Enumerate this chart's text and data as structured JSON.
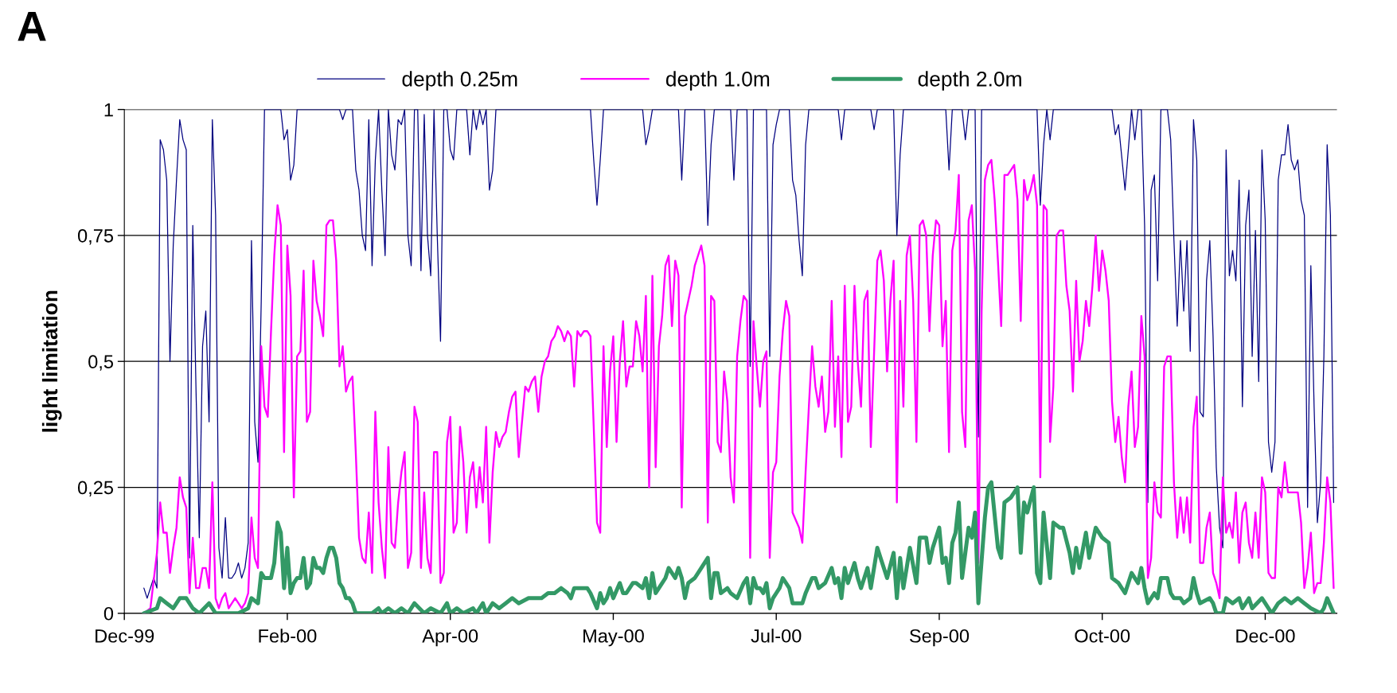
{
  "chart_data": {
    "type": "line",
    "ylabel": "light limitation",
    "annotations": [
      "A"
    ],
    "legend": "top",
    "grid": "y",
    "line_style": "solid",
    "xlim": [
      "1999-12-31",
      "2001-01-06"
    ],
    "xticks": [
      {
        "value": "1999-12-31",
        "label": "Dec-99"
      },
      {
        "value": "2000-02-19",
        "label": "Feb-00"
      },
      {
        "value": "2000-04-09",
        "label": "Apr-00"
      },
      {
        "value": "2000-05-29",
        "label": "May-00"
      },
      {
        "value": "2000-07-18",
        "label": "Jul-00"
      },
      {
        "value": "2000-09-06",
        "label": "Sep-00"
      },
      {
        "value": "2000-10-26",
        "label": "Oct-00"
      },
      {
        "value": "2000-12-15",
        "label": "Dec-00"
      }
    ],
    "ylim": [
      0,
      1
    ],
    "yticks": [
      0,
      {
        "value": 0.25,
        "label": "0,25"
      },
      {
        "value": 0.5,
        "label": "0,5"
      },
      {
        "value": 0.75,
        "label": "0,75"
      },
      1
    ],
    "series": [
      {
        "name": "depth 0.25m",
        "color": "#000080",
        "x": [
          "2000-01-06",
          "2000-01-07",
          "2000-01-09",
          "2000-01-10",
          "2000-01-11",
          "2000-01-12",
          "2000-01-13",
          "2000-01-14",
          "2000-01-15",
          "2000-01-16",
          "2000-01-17",
          "2000-01-18",
          "2000-01-19",
          "2000-01-20",
          "2000-01-21",
          "2000-01-22",
          "2000-01-23",
          "2000-01-24",
          "2000-01-25",
          "2000-01-26",
          "2000-01-27",
          "2000-01-28",
          "2000-01-29",
          "2000-01-30",
          "2000-01-31",
          "2000-02-01",
          "2000-02-02",
          "2000-02-03",
          "2000-02-04",
          "2000-02-05",
          "2000-02-06",
          "2000-02-07",
          "2000-02-08",
          "2000-02-09",
          "2000-02-10",
          "2000-02-11",
          "2000-02-12",
          "2000-02-17",
          "2000-02-18",
          "2000-02-19",
          "2000-02-20",
          "2000-02-21",
          "2000-02-22",
          "2000-03-06",
          "2000-03-07",
          "2000-03-08",
          "2000-03-10",
          "2000-03-11",
          "2000-03-12",
          "2000-03-13",
          "2000-03-14",
          "2000-03-15",
          "2000-03-16",
          "2000-03-17",
          "2000-03-18",
          "2000-03-19",
          "2000-03-20",
          "2000-03-21",
          "2000-03-22",
          "2000-03-23",
          "2000-03-24",
          "2000-03-25",
          "2000-03-26",
          "2000-03-27",
          "2000-03-28",
          "2000-03-29",
          "2000-03-30",
          "2000-03-31",
          "2000-04-01",
          "2000-04-02",
          "2000-04-03",
          "2000-04-04",
          "2000-04-05",
          "2000-04-06",
          "2000-04-07",
          "2000-04-08",
          "2000-04-09",
          "2000-04-10",
          "2000-04-11",
          "2000-04-14",
          "2000-04-15",
          "2000-04-16",
          "2000-04-17",
          "2000-04-18",
          "2000-04-19",
          "2000-04-20",
          "2000-04-21",
          "2000-04-22",
          "2000-04-23",
          "2000-05-22",
          "2000-05-23",
          "2000-05-24",
          "2000-05-25",
          "2000-05-26",
          "2000-06-07",
          "2000-06-08",
          "2000-06-09",
          "2000-06-10",
          "2000-06-18",
          "2000-06-19",
          "2000-06-20",
          "2000-06-26",
          "2000-06-27",
          "2000-06-28",
          "2000-06-29",
          "2000-07-04",
          "2000-07-05",
          "2000-07-06",
          "2000-07-09",
          "2000-07-10",
          "2000-07-11",
          "2000-07-15",
          "2000-07-16",
          "2000-07-17",
          "2000-07-18",
          "2000-07-19",
          "2000-07-22",
          "2000-07-23",
          "2000-07-24",
          "2000-07-25",
          "2000-07-26",
          "2000-07-27",
          "2000-07-28",
          "2000-08-06",
          "2000-08-07",
          "2000-08-08",
          "2000-08-16",
          "2000-08-17",
          "2000-08-18",
          "2000-08-23",
          "2000-08-24",
          "2000-08-25",
          "2000-08-26",
          "2000-09-08",
          "2000-09-09",
          "2000-09-10",
          "2000-09-13",
          "2000-09-14",
          "2000-09-15",
          "2000-09-17",
          "2000-09-18",
          "2000-09-19",
          "2000-10-06",
          "2000-10-07",
          "2000-10-08",
          "2000-10-09",
          "2000-10-10",
          "2000-10-11",
          "2000-10-29",
          "2000-10-30",
          "2000-10-31",
          "2000-11-02",
          "2000-11-04",
          "2000-11-05",
          "2000-11-06",
          "2000-11-07",
          "2000-11-08",
          "2000-11-09",
          "2000-11-10",
          "2000-11-11",
          "2000-11-12",
          "2000-11-13",
          "2000-11-15",
          "2000-11-16",
          "2000-11-17",
          "2000-11-18",
          "2000-11-19",
          "2000-11-20",
          "2000-11-21",
          "2000-11-22",
          "2000-11-23",
          "2000-11-24",
          "2000-11-25",
          "2000-11-26",
          "2000-11-27",
          "2000-11-28",
          "2000-11-29",
          "2000-11-30",
          "2000-12-01",
          "2000-12-02",
          "2000-12-03",
          "2000-12-04",
          "2000-12-05",
          "2000-12-06",
          "2000-12-07",
          "2000-12-08",
          "2000-12-09",
          "2000-12-10",
          "2000-12-11",
          "2000-12-12",
          "2000-12-13",
          "2000-12-14",
          "2000-12-15",
          "2000-12-16",
          "2000-12-17",
          "2000-12-18",
          "2000-12-19",
          "2000-12-20",
          "2000-12-21",
          "2000-12-22",
          "2000-12-23",
          "2000-12-24",
          "2000-12-25",
          "2000-12-26",
          "2000-12-27",
          "2000-12-28",
          "2000-12-29",
          "2000-12-30",
          "2000-12-31",
          "2001-01-01",
          "2001-01-02",
          "2001-01-03",
          "2001-01-04",
          "2001-01-05"
        ],
        "values": [
          0.05,
          0.03,
          0.07,
          0.05,
          0.94,
          0.92,
          0.86,
          0.5,
          0.73,
          0.86,
          0.98,
          0.94,
          0.92,
          0.11,
          0.77,
          0.44,
          0.15,
          0.53,
          0.6,
          0.38,
          0.98,
          0.79,
          0.13,
          0.07,
          0.19,
          0.07,
          0.07,
          0.08,
          0.1,
          0.07,
          0.09,
          0.14,
          0.74,
          0.38,
          0.3,
          0.62,
          1,
          1,
          0.94,
          0.96,
          0.86,
          0.89,
          1,
          1,
          0.98,
          1,
          1,
          0.88,
          0.84,
          0.75,
          0.72,
          0.98,
          0.69,
          0.9,
          1,
          0.84,
          0.71,
          1,
          0.91,
          0.88,
          0.98,
          0.97,
          1,
          0.75,
          0.69,
          1,
          1,
          0.68,
          0.99,
          0.75,
          0.67,
          1,
          0.75,
          0.54,
          1,
          1,
          0.92,
          0.9,
          1,
          1,
          0.91,
          1,
          0.96,
          1,
          0.97,
          1,
          0.84,
          0.88,
          1,
          1,
          0.9,
          0.81,
          0.9,
          1,
          1,
          0.93,
          0.96,
          1,
          1,
          0.86,
          1,
          1,
          0.77,
          0.93,
          1,
          1,
          0.86,
          1,
          1,
          0.49,
          1,
          1,
          0.51,
          0.93,
          0.97,
          1,
          1,
          0.86,
          0.83,
          0.74,
          0.67,
          0.93,
          1,
          1,
          0.94,
          1,
          1,
          0.96,
          1,
          1,
          0.75,
          0.91,
          1,
          1,
          0.88,
          1,
          1,
          0.94,
          1,
          1,
          0.35,
          1,
          1,
          0.81,
          0.93,
          1,
          0.94,
          1,
          1,
          0.95,
          0.97,
          0.84,
          1,
          0.94,
          1,
          1,
          0.77,
          0.22,
          0.84,
          0.87,
          0.66,
          1,
          1,
          0.94,
          0.74,
          0.57,
          0.74,
          0.6,
          0.74,
          0.52,
          0.98,
          0.9,
          0.4,
          0.39,
          0.66,
          0.74,
          0.55,
          0.29,
          0.17,
          0.13,
          0.92,
          0.67,
          0.72,
          0.66,
          0.86,
          0.41,
          0.77,
          0.84,
          0.51,
          0.76,
          0.46,
          0.92,
          0.78,
          0.34,
          0.28,
          0.34,
          0.86,
          0.91,
          0.91,
          0.97,
          0.9,
          0.88,
          0.9,
          0.82,
          0.79,
          0.21,
          0.69,
          0.41,
          0.18,
          0.26,
          0.51,
          0.93,
          0.79,
          0.22
        ]
      },
      {
        "name": "depth 1.0m",
        "color": "#ff00ff",
        "x": [
          "2000-01-06",
          "2000-01-08",
          "2000-01-10",
          "2000-01-11",
          "2000-01-12",
          "2000-01-13",
          "2000-01-14",
          "2000-01-15",
          "2000-01-16",
          "2000-01-17",
          "2000-01-18",
          "2000-01-19",
          "2000-01-20",
          "2000-01-21",
          "2000-01-22",
          "2000-01-23",
          "2000-01-24",
          "2000-01-25",
          "2000-01-26",
          "2000-01-27",
          "2000-01-28",
          "2000-01-29",
          "2000-01-30",
          "2000-01-31",
          "2000-02-01",
          "2000-02-02",
          "2000-02-03",
          "2000-02-04",
          "2000-02-05",
          "2000-02-06",
          "2000-02-07",
          "2000-02-08",
          "2000-02-09",
          "2000-02-10",
          "2000-02-11",
          "2000-02-12",
          "2000-02-13",
          "2000-02-14",
          "2000-02-15",
          "2000-02-16",
          "2000-02-17",
          "2000-02-18",
          "2000-02-19",
          "2000-02-20",
          "2000-02-21",
          "2000-02-22",
          "2000-02-23",
          "2000-02-24",
          "2000-02-25",
          "2000-02-26",
          "2000-02-27",
          "2000-02-28",
          "2000-02-29",
          "2000-03-01",
          "2000-03-02",
          "2000-03-03",
          "2000-03-04",
          "2000-03-05",
          "2000-03-06",
          "2000-03-07",
          "2000-03-08",
          "2000-03-09",
          "2000-03-10",
          "2000-03-11",
          "2000-03-12",
          "2000-03-13",
          "2000-03-14",
          "2000-03-15",
          "2000-03-16",
          "2000-03-17",
          "2000-03-18",
          "2000-03-19",
          "2000-03-20",
          "2000-03-21",
          "2000-03-22",
          "2000-03-23",
          "2000-03-24",
          "2000-03-25",
          "2000-03-26",
          "2000-03-27",
          "2000-03-28",
          "2000-03-29",
          "2000-03-30",
          "2000-03-31",
          "2000-04-01",
          "2000-04-02",
          "2000-04-03",
          "2000-04-04",
          "2000-04-05",
          "2000-04-06",
          "2000-04-07",
          "2000-04-08",
          "2000-04-09",
          "2000-04-10",
          "2000-04-11",
          "2000-04-12",
          "2000-04-13",
          "2000-04-14",
          "2000-04-15",
          "2000-04-16",
          "2000-04-17",
          "2000-04-18",
          "2000-04-19",
          "2000-04-20",
          "2000-04-21",
          "2000-04-22",
          "2000-04-23",
          "2000-04-24",
          "2000-04-25",
          "2000-04-26",
          "2000-04-27",
          "2000-04-28",
          "2000-04-29",
          "2000-04-30",
          "2000-05-01",
          "2000-05-02",
          "2000-05-03",
          "2000-05-04",
          "2000-05-05",
          "2000-05-06",
          "2000-05-07",
          "2000-05-08",
          "2000-05-09",
          "2000-05-10",
          "2000-05-11",
          "2000-05-12",
          "2000-05-13",
          "2000-05-14",
          "2000-05-15",
          "2000-05-16",
          "2000-05-17",
          "2000-05-18",
          "2000-05-19",
          "2000-05-20",
          "2000-05-21",
          "2000-05-22",
          "2000-05-23",
          "2000-05-24",
          "2000-05-25",
          "2000-05-26",
          "2000-05-27",
          "2000-05-28",
          "2000-05-29",
          "2000-05-30",
          "2000-05-31",
          "2000-06-01",
          "2000-06-02",
          "2000-06-03",
          "2000-06-04",
          "2000-06-05",
          "2000-06-06",
          "2000-06-07",
          "2000-06-08",
          "2000-06-09",
          "2000-06-10",
          "2000-06-11",
          "2000-06-12",
          "2000-06-13",
          "2000-06-14",
          "2000-06-15",
          "2000-06-16",
          "2000-06-17",
          "2000-06-18",
          "2000-06-19",
          "2000-06-20",
          "2000-06-21",
          "2000-06-22",
          "2000-06-23",
          "2000-06-24",
          "2000-06-25",
          "2000-06-26",
          "2000-06-27",
          "2000-06-28",
          "2000-06-29",
          "2000-06-30",
          "2000-07-01",
          "2000-07-02",
          "2000-07-03",
          "2000-07-04",
          "2000-07-05",
          "2000-07-06",
          "2000-07-07",
          "2000-07-08",
          "2000-07-09",
          "2000-07-10",
          "2000-07-11",
          "2000-07-12",
          "2000-07-13",
          "2000-07-14",
          "2000-07-15",
          "2000-07-16",
          "2000-07-17",
          "2000-07-18",
          "2000-07-19",
          "2000-07-20",
          "2000-07-21",
          "2000-07-22",
          "2000-07-23",
          "2000-07-25",
          "2000-07-26",
          "2000-07-27",
          "2000-07-28",
          "2000-07-29",
          "2000-07-30",
          "2000-07-31",
          "2000-08-01",
          "2000-08-02",
          "2000-08-03",
          "2000-08-04",
          "2000-08-05",
          "2000-08-06",
          "2000-08-07",
          "2000-08-08",
          "2000-08-09",
          "2000-08-10",
          "2000-08-11",
          "2000-08-12",
          "2000-08-13",
          "2000-08-14",
          "2000-08-15",
          "2000-08-16",
          "2000-08-18",
          "2000-08-19",
          "2000-08-20",
          "2000-08-21",
          "2000-08-22",
          "2000-08-23",
          "2000-08-24",
          "2000-08-25",
          "2000-08-26",
          "2000-08-27",
          "2000-08-28",
          "2000-08-29",
          "2000-08-30",
          "2000-08-31",
          "2000-09-01",
          "2000-09-02",
          "2000-09-03",
          "2000-09-04",
          "2000-09-05",
          "2000-09-06",
          "2000-09-07",
          "2000-09-08",
          "2000-09-09",
          "2000-09-10",
          "2000-09-11",
          "2000-09-12",
          "2000-09-13",
          "2000-09-14",
          "2000-09-15",
          "2000-09-16",
          "2000-09-17",
          "2000-09-18",
          "2000-09-19",
          "2000-09-20",
          "2000-09-21",
          "2000-09-22",
          "2000-09-23",
          "2000-09-24",
          "2000-09-25",
          "2000-09-26",
          "2000-09-27",
          "2000-09-28",
          "2000-09-29",
          "2000-09-30",
          "2000-10-01",
          "2000-10-02",
          "2000-10-03",
          "2000-10-04",
          "2000-10-05",
          "2000-10-06",
          "2000-10-07",
          "2000-10-08",
          "2000-10-09",
          "2000-10-10",
          "2000-10-11",
          "2000-10-12",
          "2000-10-13",
          "2000-10-14",
          "2000-10-15",
          "2000-10-16",
          "2000-10-17",
          "2000-10-18",
          "2000-10-19",
          "2000-10-20",
          "2000-10-21",
          "2000-10-22",
          "2000-10-23",
          "2000-10-24",
          "2000-10-25",
          "2000-10-26",
          "2000-10-27",
          "2000-10-28",
          "2000-10-29",
          "2000-10-30",
          "2000-10-31",
          "2000-11-01",
          "2000-11-02",
          "2000-11-03",
          "2000-11-04",
          "2000-11-05",
          "2000-11-06",
          "2000-11-07",
          "2000-11-08",
          "2000-11-09",
          "2000-11-10",
          "2000-11-11",
          "2000-11-12",
          "2000-11-13",
          "2000-11-14",
          "2000-11-15",
          "2000-11-16",
          "2000-11-17",
          "2000-11-18",
          "2000-11-19",
          "2000-11-20",
          "2000-11-21",
          "2000-11-22",
          "2000-11-23",
          "2000-11-24",
          "2000-11-25",
          "2000-11-26",
          "2000-11-27",
          "2000-11-28",
          "2000-11-29",
          "2000-11-30",
          "2000-12-01",
          "2000-12-02",
          "2000-12-03",
          "2000-12-04",
          "2000-12-05",
          "2000-12-06",
          "2000-12-07",
          "2000-12-08",
          "2000-12-09",
          "2000-12-10",
          "2000-12-11",
          "2000-12-12",
          "2000-12-13",
          "2000-12-14",
          "2000-12-15",
          "2000-12-16",
          "2000-12-17",
          "2000-12-18",
          "2000-12-19",
          "2000-12-20",
          "2000-12-21",
          "2000-12-22",
          "2000-12-23",
          "2000-12-25",
          "2000-12-26",
          "2000-12-27",
          "2000-12-28",
          "2000-12-29",
          "2000-12-30",
          "2000-12-31",
          "2001-01-01",
          "2001-01-02",
          "2001-01-03",
          "2001-01-04",
          "2001-01-05"
        ],
        "values": [
          0,
          0.01,
          0.12,
          0.22,
          0.16,
          0.16,
          0.08,
          0.13,
          0.17,
          0.27,
          0.23,
          0.21,
          0.04,
          0.15,
          0.05,
          0.05,
          0.09,
          0.09,
          0.05,
          0.26,
          0.03,
          0.01,
          0.03,
          0.04,
          0.01,
          0.02,
          0.03,
          0.02,
          0.01,
          0.02,
          0.04,
          0.19,
          0.11,
          0.09,
          0.53,
          0.41,
          0.39,
          0.56,
          0.71,
          0.81,
          0.77,
          0.32,
          0.73,
          0.63,
          0.23,
          0.51,
          0.52,
          0.68,
          0.38,
          0.4,
          0.7,
          0.62,
          0.59,
          0.55,
          0.77,
          0.78,
          0.78,
          0.7,
          0.49,
          0.53,
          0.44,
          0.46,
          0.47,
          0.32,
          0.15,
          0.11,
          0.1,
          0.2,
          0.08,
          0.4,
          0.22,
          0.13,
          0.07,
          0.33,
          0.14,
          0.13,
          0.22,
          0.28,
          0.32,
          0.09,
          0.12,
          0.41,
          0.38,
          0.09,
          0.24,
          0.11,
          0.08,
          0.32,
          0.32,
          0.06,
          0.08,
          0.34,
          0.39,
          0.16,
          0.18,
          0.37,
          0.3,
          0.16,
          0.27,
          0.3,
          0.21,
          0.29,
          0.22,
          0.37,
          0.14,
          0.28,
          0.36,
          0.33,
          0.35,
          0.36,
          0.4,
          0.43,
          0.44,
          0.31,
          0.38,
          0.45,
          0.44,
          0.46,
          0.47,
          0.4,
          0.47,
          0.5,
          0.51,
          0.54,
          0.55,
          0.57,
          0.56,
          0.54,
          0.56,
          0.55,
          0.45,
          0.56,
          0.55,
          0.56,
          0.56,
          0.55,
          0.37,
          0.18,
          0.16,
          0.53,
          0.33,
          0.48,
          0.55,
          0.34,
          0.5,
          0.58,
          0.45,
          0.49,
          0.49,
          0.58,
          0.55,
          0.48,
          0.63,
          0.25,
          0.67,
          0.29,
          0.53,
          0.59,
          0.69,
          0.71,
          0.57,
          0.7,
          0.67,
          0.21,
          0.59,
          0.62,
          0.65,
          0.69,
          0.71,
          0.73,
          0.69,
          0.18,
          0.63,
          0.62,
          0.34,
          0.32,
          0.48,
          0.42,
          0.27,
          0.22,
          0.51,
          0.58,
          0.63,
          0.62,
          0.11,
          0.58,
          0.49,
          0.41,
          0.5,
          0.52,
          0.11,
          0.28,
          0.3,
          0.47,
          0.56,
          0.62,
          0.59,
          0.2,
          0.17,
          0.14,
          0.28,
          0.41,
          0.53,
          0.45,
          0.41,
          0.47,
          0.36,
          0.4,
          0.62,
          0.37,
          0.51,
          0.31,
          0.65,
          0.38,
          0.41,
          0.65,
          0.5,
          0.41,
          0.62,
          0.64,
          0.33,
          0.7,
          0.72,
          0.66,
          0.48,
          0.62,
          0.7,
          0.22,
          0.62,
          0.41,
          0.71,
          0.75,
          0.62,
          0.34,
          0.77,
          0.78,
          0.75,
          0.56,
          0.71,
          0.78,
          0.77,
          0.53,
          0.62,
          0.32,
          0.72,
          0.76,
          0.87,
          0.4,
          0.33,
          0.78,
          0.81,
          0.68,
          0.1,
          0.6,
          0.86,
          0.89,
          0.9,
          0.82,
          0.7,
          0.57,
          0.87,
          0.87,
          0.88,
          0.89,
          0.82,
          0.58,
          0.86,
          0.82,
          0.84,
          0.87,
          0.81,
          0.27,
          0.81,
          0.8,
          0.34,
          0.45,
          0.75,
          0.76,
          0.76,
          0.65,
          0.6,
          0.44,
          0.66,
          0.5,
          0.54,
          0.62,
          0.57,
          0.65,
          0.75,
          0.64,
          0.72,
          0.68,
          0.62,
          0.42,
          0.34,
          0.39,
          0.31,
          0.26,
          0.41,
          0.48,
          0.33,
          0.37,
          0.59,
          0.51,
          0.07,
          0.11,
          0.26,
          0.2,
          0.19,
          0.49,
          0.51,
          0.51,
          0.26,
          0.15,
          0.23,
          0.16,
          0.23,
          0.14,
          0.37,
          0.43,
          0.1,
          0.1,
          0.17,
          0.2,
          0.08,
          0.06,
          0.03,
          0.27,
          0.16,
          0.18,
          0.15,
          0.24,
          0.1,
          0.2,
          0.22,
          0.14,
          0.11,
          0.2,
          0.11,
          0.27,
          0.24,
          0.08,
          0.07,
          0.07,
          0.25,
          0.23,
          0.3,
          0.24,
          0.24,
          0.24,
          0.18,
          0.05,
          0.09,
          0.16,
          0.04,
          0.06,
          0.06,
          0.14,
          0.27,
          0.22,
          0.05
        ]
      },
      {
        "name": "depth 2.0m",
        "color": "#339966",
        "x": [
          "2000-01-06",
          "2000-01-10",
          "2000-01-11",
          "2000-01-13",
          "2000-01-15",
          "2000-01-17",
          "2000-01-19",
          "2000-01-21",
          "2000-01-23",
          "2000-01-26",
          "2000-01-28",
          "2000-01-30",
          "2000-02-04",
          "2000-02-07",
          "2000-02-08",
          "2000-02-10",
          "2000-02-11",
          "2000-02-12",
          "2000-02-14",
          "2000-02-15",
          "2000-02-16",
          "2000-02-17",
          "2000-02-18",
          "2000-02-19",
          "2000-02-20",
          "2000-02-21",
          "2000-02-22",
          "2000-02-23",
          "2000-02-24",
          "2000-02-25",
          "2000-02-26",
          "2000-02-27",
          "2000-02-28",
          "2000-02-29",
          "2000-03-01",
          "2000-03-02",
          "2000-03-03",
          "2000-03-04",
          "2000-03-05",
          "2000-03-06",
          "2000-03-07",
          "2000-03-08",
          "2000-03-09",
          "2000-03-10",
          "2000-03-11",
          "2000-03-16",
          "2000-03-18",
          "2000-03-19",
          "2000-03-21",
          "2000-03-23",
          "2000-03-25",
          "2000-03-27",
          "2000-03-29",
          "2000-04-01",
          "2000-04-03",
          "2000-04-06",
          "2000-04-08",
          "2000-04-09",
          "2000-04-11",
          "2000-04-13",
          "2000-04-16",
          "2000-04-17",
          "2000-04-19",
          "2000-04-20",
          "2000-04-22",
          "2000-04-24",
          "2000-04-26",
          "2000-04-28",
          "2000-04-30",
          "2000-05-03",
          "2000-05-05",
          "2000-05-07",
          "2000-05-09",
          "2000-05-11",
          "2000-05-13",
          "2000-05-15",
          "2000-05-16",
          "2000-05-17",
          "2000-05-19",
          "2000-05-21",
          "2000-05-22",
          "2000-05-24",
          "2000-05-25",
          "2000-05-26",
          "2000-05-27",
          "2000-05-28",
          "2000-05-29",
          "2000-05-31",
          "2000-06-01",
          "2000-06-02",
          "2000-06-04",
          "2000-06-05",
          "2000-06-07",
          "2000-06-08",
          "2000-06-09",
          "2000-06-10",
          "2000-06-11",
          "2000-06-12",
          "2000-06-14",
          "2000-06-15",
          "2000-06-17",
          "2000-06-18",
          "2000-06-19",
          "2000-06-20",
          "2000-06-21",
          "2000-06-23",
          "2000-06-25",
          "2000-06-27",
          "2000-06-28",
          "2000-06-29",
          "2000-06-30",
          "2000-07-01",
          "2000-07-03",
          "2000-07-04",
          "2000-07-06",
          "2000-07-08",
          "2000-07-09",
          "2000-07-10",
          "2000-07-11",
          "2000-07-12",
          "2000-07-13",
          "2000-07-14",
          "2000-07-15",
          "2000-07-16",
          "2000-07-17",
          "2000-07-18",
          "2000-07-19",
          "2000-07-20",
          "2000-07-22",
          "2000-07-23",
          "2000-07-26",
          "2000-07-27",
          "2000-07-29",
          "2000-07-30",
          "2000-07-31",
          "2000-08-02",
          "2000-08-04",
          "2000-08-05",
          "2000-08-06",
          "2000-08-07",
          "2000-08-08",
          "2000-08-09",
          "2000-08-11",
          "2000-08-12",
          "2000-08-13",
          "2000-08-15",
          "2000-08-16",
          "2000-08-18",
          "2000-08-19",
          "2000-08-21",
          "2000-08-23",
          "2000-08-24",
          "2000-08-25",
          "2000-08-26",
          "2000-08-28",
          "2000-08-30",
          "2000-08-31",
          "2000-09-02",
          "2000-09-03",
          "2000-09-04",
          "2000-09-06",
          "2000-09-07",
          "2000-09-08",
          "2000-09-09",
          "2000-09-10",
          "2000-09-11",
          "2000-09-12",
          "2000-09-13",
          "2000-09-15",
          "2000-09-16",
          "2000-09-17",
          "2000-09-18",
          "2000-09-20",
          "2000-09-21",
          "2000-09-22",
          "2000-09-24",
          "2000-09-25",
          "2000-09-26",
          "2000-09-28",
          "2000-09-29",
          "2000-09-30",
          "2000-10-01",
          "2000-10-02",
          "2000-10-03",
          "2000-10-05",
          "2000-10-06",
          "2000-10-07",
          "2000-10-08",
          "2000-10-10",
          "2000-10-11",
          "2000-10-13",
          "2000-10-14",
          "2000-10-16",
          "2000-10-17",
          "2000-10-18",
          "2000-10-19",
          "2000-10-21",
          "2000-10-22",
          "2000-10-24",
          "2000-10-26",
          "2000-10-28",
          "2000-10-29",
          "2000-10-31",
          "2000-11-02",
          "2000-11-04",
          "2000-11-06",
          "2000-11-07",
          "2000-11-08",
          "2000-11-09",
          "2000-11-11",
          "2000-11-12",
          "2000-11-13",
          "2000-11-14",
          "2000-11-15",
          "2000-11-16",
          "2000-11-17",
          "2000-11-19",
          "2000-11-20",
          "2000-11-22",
          "2000-11-23",
          "2000-11-24",
          "2000-11-25",
          "2000-11-28",
          "2000-11-29",
          "2000-11-30",
          "2000-12-02",
          "2000-12-03",
          "2000-12-05",
          "2000-12-07",
          "2000-12-08",
          "2000-12-10",
          "2000-12-11",
          "2000-12-14",
          "2000-12-15",
          "2000-12-17",
          "2000-12-19",
          "2000-12-21",
          "2000-12-23",
          "2000-12-25",
          "2000-12-27",
          "2000-12-29",
          "2001-01-01",
          "2001-01-02",
          "2001-01-03",
          "2001-01-05"
        ],
        "values": [
          0,
          0.01,
          0.03,
          0.02,
          0.01,
          0.03,
          0.03,
          0.01,
          0,
          0.02,
          0,
          0,
          0,
          0.01,
          0.03,
          0.02,
          0.08,
          0.07,
          0.07,
          0.1,
          0.18,
          0.16,
          0.05,
          0.13,
          0.04,
          0.06,
          0.07,
          0.07,
          0.11,
          0.05,
          0.06,
          0.11,
          0.09,
          0.09,
          0.08,
          0.11,
          0.13,
          0.13,
          0.11,
          0.06,
          0.05,
          0.03,
          0.03,
          0.02,
          0,
          0,
          0.01,
          0,
          0.01,
          0,
          0.01,
          0,
          0.02,
          0,
          0.01,
          0,
          0.02,
          0,
          0.01,
          0,
          0.01,
          0,
          0.02,
          0,
          0.02,
          0.01,
          0.02,
          0.03,
          0.02,
          0.03,
          0.03,
          0.03,
          0.04,
          0.04,
          0.05,
          0.04,
          0.03,
          0.05,
          0.05,
          0.05,
          0.04,
          0.01,
          0.04,
          0.02,
          0.03,
          0.05,
          0.03,
          0.06,
          0.04,
          0.04,
          0.06,
          0.06,
          0.05,
          0.07,
          0.03,
          0.08,
          0.04,
          0.05,
          0.07,
          0.09,
          0.07,
          0.09,
          0.07,
          0.03,
          0.06,
          0.07,
          0.09,
          0.11,
          0.03,
          0.08,
          0.08,
          0.04,
          0.05,
          0.04,
          0.03,
          0.06,
          0.07,
          0.02,
          0.07,
          0.05,
          0.05,
          0.04,
          0.06,
          0.01,
          0.03,
          0.04,
          0.05,
          0.07,
          0.05,
          0.02,
          0.02,
          0.04,
          0.07,
          0.07,
          0.05,
          0.06,
          0.09,
          0.06,
          0.07,
          0.03,
          0.09,
          0.06,
          0.1,
          0.07,
          0.05,
          0.09,
          0.05,
          0.13,
          0.11,
          0.07,
          0.12,
          0.03,
          0.11,
          0.05,
          0.13,
          0.06,
          0.15,
          0.15,
          0.1,
          0.13,
          0.17,
          0.1,
          0.11,
          0.06,
          0.14,
          0.16,
          0.22,
          0.07,
          0.17,
          0.15,
          0.2,
          0.02,
          0.19,
          0.25,
          0.26,
          0.13,
          0.11,
          0.22,
          0.23,
          0.24,
          0.25,
          0.12,
          0.22,
          0.2,
          0.25,
          0.08,
          0.06,
          0.2,
          0.07,
          0.18,
          0.17,
          0.17,
          0.12,
          0.08,
          0.13,
          0.09,
          0.16,
          0.11,
          0.17,
          0.15,
          0.14,
          0.07,
          0.06,
          0.04,
          0.08,
          0.06,
          0.09,
          0.05,
          0.02,
          0.04,
          0.03,
          0.07,
          0.07,
          0.07,
          0.04,
          0.03,
          0.03,
          0.02,
          0.03,
          0.07,
          0.04,
          0.02,
          0.03,
          0.02,
          0,
          0,
          0.03,
          0.02,
          0.03,
          0.01,
          0.03,
          0.01,
          0.03,
          0.02,
          0,
          0.02,
          0.03,
          0.02,
          0.03,
          0.02,
          0.01,
          0,
          0.01,
          0.03,
          0
        ]
      }
    ]
  }
}
